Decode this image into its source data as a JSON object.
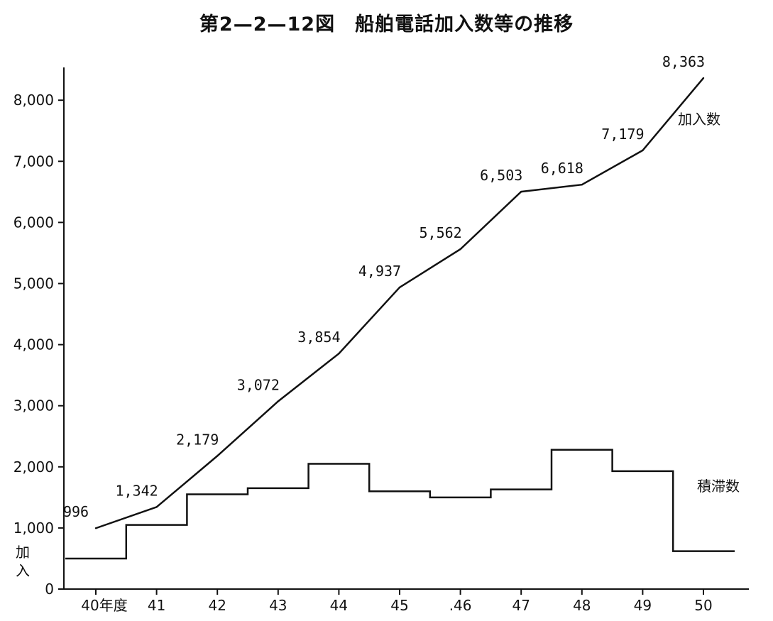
{
  "chart_data": {
    "type": "line",
    "title": "第2—2—12図　船舶電話加入数等の推移",
    "ylabel": "加入",
    "ylim": [
      0,
      8500
    ],
    "yticks": [
      0,
      1000,
      2000,
      3000,
      4000,
      5000,
      6000,
      7000,
      8000
    ],
    "ytick_labels": [
      "0",
      "1,000",
      "2,000",
      "3,000",
      "4,000",
      "5,000",
      "6,000",
      "7,000",
      "8,000"
    ],
    "x_range": [
      39.5,
      50.75
    ],
    "categories": [
      40,
      41,
      42,
      43,
      44,
      45,
      46,
      47,
      48,
      49,
      50
    ],
    "xtick_labels": [
      "40年度",
      "41",
      "42",
      "43",
      "44",
      "45",
      ".46",
      "47",
      "48",
      "49",
      "50"
    ],
    "grid": false,
    "series": [
      {
        "name": "加入数",
        "style": "line",
        "x": [
          40,
          41,
          42,
          43,
          44,
          45,
          46,
          47,
          48,
          49,
          50
        ],
        "values": [
          996,
          1342,
          2179,
          3072,
          3854,
          4937,
          5562,
          6503,
          6618,
          7179,
          8363
        ],
        "value_labels": [
          "996",
          "1,342",
          "2,179",
          "3,072",
          "3,854",
          "4,937",
          "5,562",
          "6,503",
          "6,618",
          "7,179",
          "8,363"
        ]
      },
      {
        "name": "積滞数",
        "style": "step",
        "x": [
          40,
          41,
          42,
          43,
          44,
          45,
          46,
          47,
          48,
          49,
          50
        ],
        "values": [
          500,
          1050,
          1550,
          1650,
          2050,
          1600,
          1500,
          1630,
          2280,
          1930,
          620
        ]
      }
    ]
  }
}
